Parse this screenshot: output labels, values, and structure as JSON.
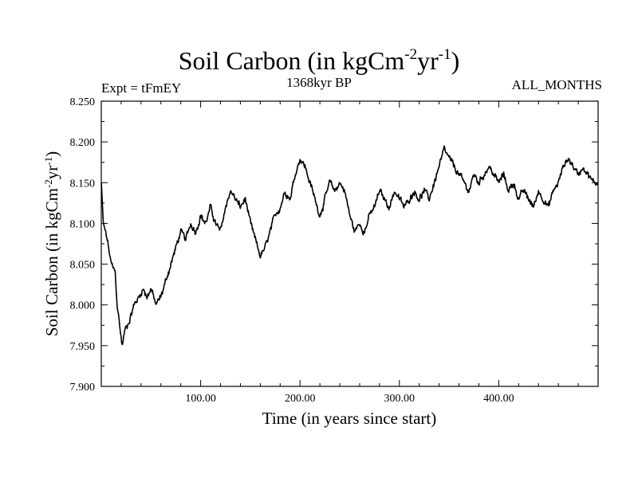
{
  "header": {
    "title_main": "Soil Carbon (in kgCm",
    "title_sup1": "-2",
    "title_mid": "yr",
    "title_sup2": "-1",
    "title_end": ")",
    "expt": "Expt = tFmEY",
    "subtitle": "1368kyr BP",
    "months": "ALL_MONTHS"
  },
  "chart_data": {
    "type": "line",
    "title": "Soil Carbon (in kgCm-2yr-1)",
    "xlabel": "Time (in years since start)",
    "ylabel_main": "Soil Carbon (in kgCm",
    "ylabel_sup1": "-2",
    "ylabel_mid": "yr",
    "ylabel_sup2": "-1",
    "ylabel_end": ")",
    "xlim": [
      0,
      500
    ],
    "ylim": [
      7.9,
      8.25
    ],
    "xticks": [
      100,
      200,
      300,
      400
    ],
    "xtick_labels": [
      "100.00",
      "200.00",
      "300.00",
      "400.00"
    ],
    "yticks": [
      7.9,
      7.95,
      8.0,
      8.05,
      8.1,
      8.15,
      8.2,
      8.25
    ],
    "ytick_labels": [
      "7.900",
      "7.950",
      "8.000",
      "8.050",
      "8.100",
      "8.150",
      "8.200",
      "8.250"
    ],
    "series": [
      {
        "name": "Soil Carbon",
        "color": "#000000",
        "noise": 0.004,
        "anchors": [
          [
            0,
            8.15
          ],
          [
            2,
            8.1
          ],
          [
            6,
            8.08
          ],
          [
            10,
            8.05
          ],
          [
            14,
            8.04
          ],
          [
            16,
            8.0
          ],
          [
            19,
            7.97
          ],
          [
            21,
            7.95
          ],
          [
            24,
            7.97
          ],
          [
            28,
            7.98
          ],
          [
            33,
            8.0
          ],
          [
            38,
            8.01
          ],
          [
            42,
            8.02
          ],
          [
            46,
            8.01
          ],
          [
            50,
            8.02
          ],
          [
            55,
            8.0
          ],
          [
            60,
            8.01
          ],
          [
            65,
            8.03
          ],
          [
            70,
            8.05
          ],
          [
            75,
            8.07
          ],
          [
            80,
            8.09
          ],
          [
            85,
            8.08
          ],
          [
            90,
            8.1
          ],
          [
            95,
            8.09
          ],
          [
            100,
            8.11
          ],
          [
            105,
            8.1
          ],
          [
            110,
            8.12
          ],
          [
            115,
            8.1
          ],
          [
            120,
            8.09
          ],
          [
            125,
            8.12
          ],
          [
            130,
            8.14
          ],
          [
            135,
            8.13
          ],
          [
            140,
            8.12
          ],
          [
            145,
            8.13
          ],
          [
            150,
            8.1
          ],
          [
            155,
            8.08
          ],
          [
            160,
            8.06
          ],
          [
            165,
            8.07
          ],
          [
            170,
            8.09
          ],
          [
            175,
            8.11
          ],
          [
            180,
            8.12
          ],
          [
            185,
            8.14
          ],
          [
            190,
            8.13
          ],
          [
            195,
            8.16
          ],
          [
            200,
            8.18
          ],
          [
            205,
            8.17
          ],
          [
            210,
            8.15
          ],
          [
            215,
            8.13
          ],
          [
            220,
            8.11
          ],
          [
            225,
            8.13
          ],
          [
            230,
            8.15
          ],
          [
            235,
            8.14
          ],
          [
            240,
            8.15
          ],
          [
            245,
            8.14
          ],
          [
            250,
            8.11
          ],
          [
            255,
            8.09
          ],
          [
            260,
            8.1
          ],
          [
            265,
            8.09
          ],
          [
            270,
            8.11
          ],
          [
            275,
            8.12
          ],
          [
            280,
            8.14
          ],
          [
            285,
            8.13
          ],
          [
            290,
            8.12
          ],
          [
            295,
            8.14
          ],
          [
            300,
            8.13
          ],
          [
            305,
            8.12
          ],
          [
            310,
            8.13
          ],
          [
            315,
            8.14
          ],
          [
            320,
            8.13
          ],
          [
            325,
            8.14
          ],
          [
            330,
            8.13
          ],
          [
            335,
            8.15
          ],
          [
            340,
            8.17
          ],
          [
            345,
            8.19
          ],
          [
            350,
            8.18
          ],
          [
            355,
            8.17
          ],
          [
            360,
            8.16
          ],
          [
            365,
            8.15
          ],
          [
            370,
            8.14
          ],
          [
            375,
            8.16
          ],
          [
            380,
            8.15
          ],
          [
            385,
            8.16
          ],
          [
            390,
            8.17
          ],
          [
            395,
            8.16
          ],
          [
            400,
            8.15
          ],
          [
            405,
            8.16
          ],
          [
            410,
            8.14
          ],
          [
            415,
            8.15
          ],
          [
            420,
            8.13
          ],
          [
            425,
            8.14
          ],
          [
            430,
            8.13
          ],
          [
            435,
            8.12
          ],
          [
            440,
            8.14
          ],
          [
            445,
            8.13
          ],
          [
            450,
            8.12
          ],
          [
            455,
            8.14
          ],
          [
            460,
            8.15
          ],
          [
            465,
            8.17
          ],
          [
            470,
            8.18
          ],
          [
            475,
            8.17
          ],
          [
            480,
            8.16
          ],
          [
            485,
            8.17
          ],
          [
            490,
            8.16
          ],
          [
            495,
            8.15
          ],
          [
            500,
            8.15
          ]
        ]
      }
    ]
  }
}
